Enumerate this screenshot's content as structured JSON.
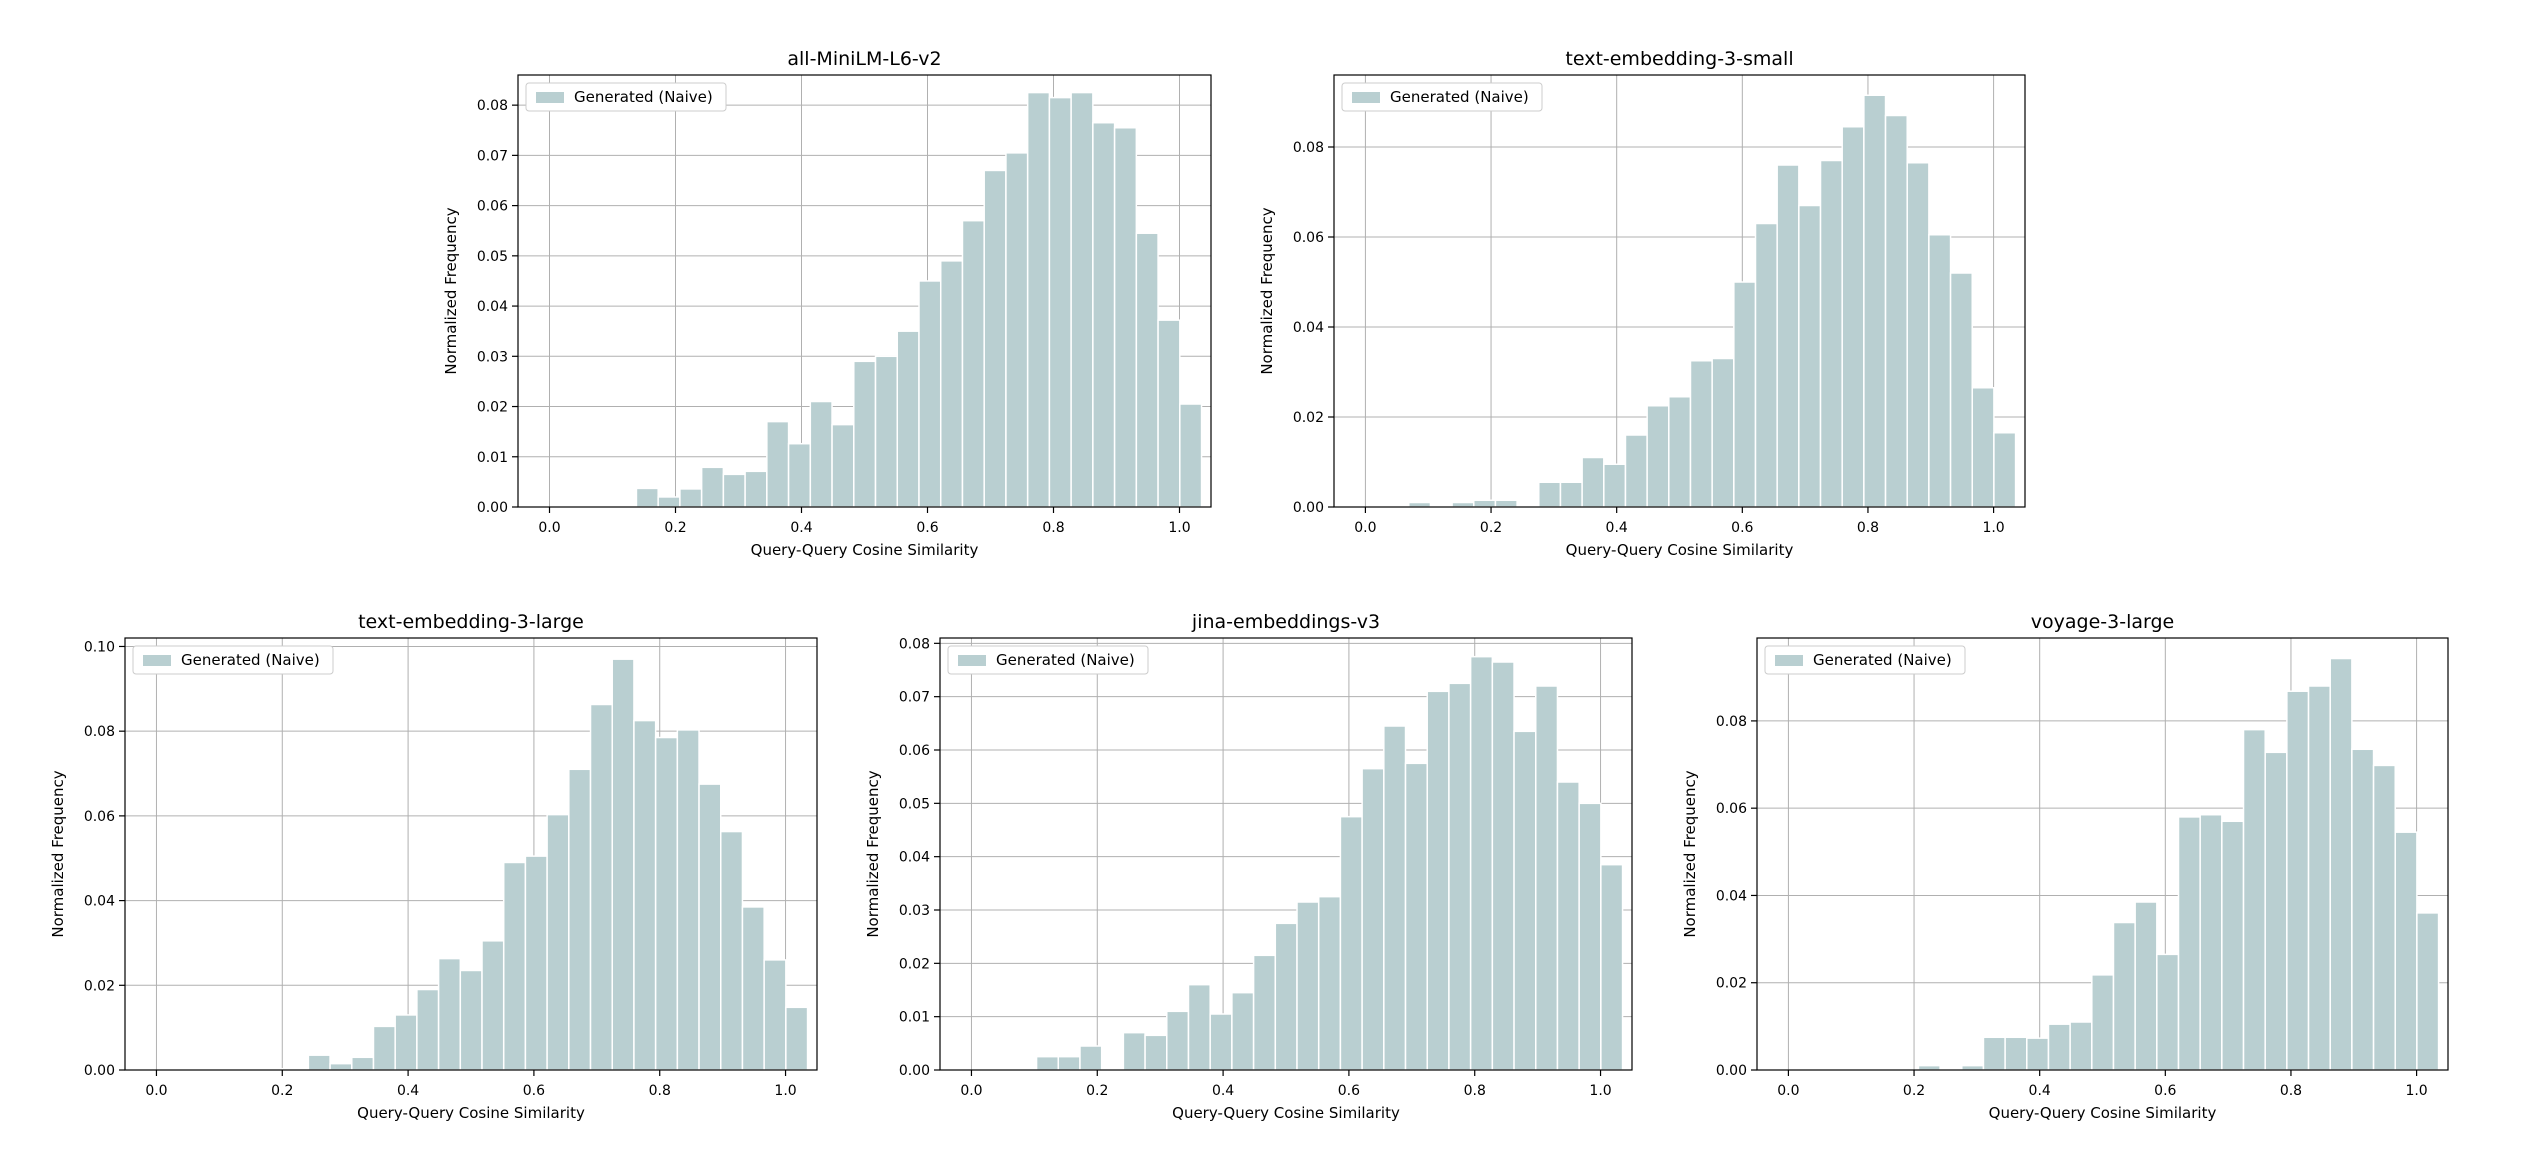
{
  "chart_data": [
    {
      "type": "bar",
      "title": "all-MiniLM-L6-v2",
      "xlabel": "Query-Query Cosine Similarity",
      "ylabel": "Normalized Frequency",
      "legend": "Generated (Naive)",
      "legend_loc": "upper-left",
      "grid": true,
      "xlim": [
        -0.05,
        1.05
      ],
      "ylim": [
        0,
        0.086
      ],
      "xticks": [
        "0.0",
        "0.2",
        "0.4",
        "0.6",
        "0.8",
        "1.0"
      ],
      "yticks": [
        "0.00",
        "0.01",
        "0.02",
        "0.03",
        "0.04",
        "0.05",
        "0.06",
        "0.07",
        "0.08"
      ],
      "bar_color": "#b9cfd1",
      "bin_width": 0.0345,
      "bins_start": 0.0,
      "values": [
        0.0,
        0.0002,
        0.0003,
        0.0,
        0.0037,
        0.002,
        0.0036,
        0.0079,
        0.0065,
        0.0071,
        0.017,
        0.0126,
        0.021,
        0.0164,
        0.029,
        0.03,
        0.035,
        0.045,
        0.049,
        0.057,
        0.067,
        0.0705,
        0.0825,
        0.0815,
        0.0825,
        0.0765,
        0.0755,
        0.0545,
        0.0372,
        0.0205
      ]
    },
    {
      "type": "bar",
      "title": "text-embedding-3-small",
      "xlabel": "Query-Query Cosine Similarity",
      "ylabel": "Normalized Frequency",
      "legend": "Generated (Naive)",
      "legend_loc": "upper-left",
      "grid": true,
      "xlim": [
        -0.05,
        1.05
      ],
      "ylim": [
        0,
        0.096
      ],
      "xticks": [
        "0.0",
        "0.2",
        "0.4",
        "0.6",
        "0.8",
        "1.0"
      ],
      "yticks": [
        "0.00",
        "0.02",
        "0.04",
        "0.06",
        "0.08"
      ],
      "bar_color": "#b9cfd1",
      "bin_width": 0.0345,
      "bins_start": 0.0,
      "values": [
        0.0,
        0.0,
        0.001,
        0.0,
        0.001,
        0.0015,
        0.0015,
        0.0,
        0.0055,
        0.0055,
        0.011,
        0.0095,
        0.016,
        0.0225,
        0.0245,
        0.0325,
        0.033,
        0.05,
        0.063,
        0.076,
        0.067,
        0.077,
        0.0845,
        0.0915,
        0.087,
        0.0765,
        0.0605,
        0.052,
        0.0265,
        0.0165
      ]
    },
    {
      "type": "bar",
      "title": "text-embedding-3-large",
      "xlabel": "Query-Query Cosine Similarity",
      "ylabel": "Normalized Frequency",
      "legend": "Generated (Naive)",
      "legend_loc": "upper-left",
      "grid": true,
      "xlim": [
        -0.05,
        1.05
      ],
      "ylim": [
        0,
        0.102
      ],
      "xticks": [
        "0.0",
        "0.2",
        "0.4",
        "0.6",
        "0.8",
        "1.0"
      ],
      "yticks": [
        "0.00",
        "0.02",
        "0.04",
        "0.06",
        "0.08",
        "0.10"
      ],
      "bar_color": "#b9cfd1",
      "bin_width": 0.0345,
      "bins_start": 0.0,
      "values": [
        0.0,
        0.0003,
        0.0003,
        0.0,
        0.0,
        0.0003,
        0.0,
        0.0035,
        0.0015,
        0.003,
        0.0103,
        0.013,
        0.019,
        0.0263,
        0.0235,
        0.0305,
        0.049,
        0.0505,
        0.0603,
        0.071,
        0.0863,
        0.097,
        0.0825,
        0.0785,
        0.0803,
        0.0675,
        0.0563,
        0.0385,
        0.026,
        0.0148
      ]
    },
    {
      "type": "bar",
      "title": "jina-embeddings-v3",
      "xlabel": "Query-Query Cosine Similarity",
      "ylabel": "Normalized Frequency",
      "legend": "Generated (Naive)",
      "legend_loc": "upper-left",
      "grid": true,
      "xlim": [
        -0.05,
        1.05
      ],
      "ylim": [
        0,
        0.081
      ],
      "xticks": [
        "0.0",
        "0.2",
        "0.4",
        "0.6",
        "0.8",
        "1.0"
      ],
      "yticks": [
        "0.00",
        "0.01",
        "0.02",
        "0.03",
        "0.04",
        "0.05",
        "0.06",
        "0.07",
        "0.08"
      ],
      "bar_color": "#b9cfd1",
      "bin_width": 0.0345,
      "bins_start": 0.0,
      "values": [
        0.0,
        0.0,
        0.0,
        0.0025,
        0.0025,
        0.0045,
        0.0,
        0.007,
        0.0065,
        0.011,
        0.016,
        0.0105,
        0.0145,
        0.0215,
        0.0275,
        0.0315,
        0.0325,
        0.0475,
        0.0565,
        0.0645,
        0.0575,
        0.071,
        0.0725,
        0.0775,
        0.0765,
        0.0635,
        0.072,
        0.054,
        0.05,
        0.0385
      ]
    },
    {
      "type": "bar",
      "title": "voyage-3-large",
      "xlabel": "Query-Query Cosine Similarity",
      "ylabel": "Normalized Frequency",
      "legend": "Generated (Naive)",
      "legend_loc": "upper-left",
      "grid": true,
      "xlim": [
        -0.05,
        1.05
      ],
      "ylim": [
        0,
        0.099
      ],
      "xticks": [
        "0.0",
        "0.2",
        "0.4",
        "0.6",
        "0.8",
        "1.0"
      ],
      "yticks": [
        "0.00",
        "0.02",
        "0.04",
        "0.06",
        "0.08"
      ],
      "bar_color": "#b9cfd1",
      "bin_width": 0.0345,
      "bins_start": 0.0,
      "values": [
        0.0,
        0.0,
        0.0,
        0.0,
        0.0,
        0.0,
        0.001,
        0.0,
        0.001,
        0.0075,
        0.0075,
        0.0073,
        0.0105,
        0.011,
        0.0218,
        0.0338,
        0.0385,
        0.0265,
        0.058,
        0.0585,
        0.057,
        0.078,
        0.0728,
        0.0868,
        0.088,
        0.0943,
        0.0735,
        0.0698,
        0.0545,
        0.036
      ]
    }
  ]
}
